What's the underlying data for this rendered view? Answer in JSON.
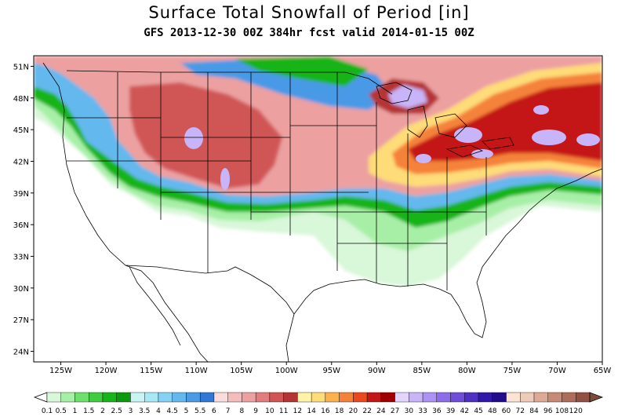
{
  "title": "Surface Total Snowfall of Period [in]",
  "subtitle": "GFS 2013-12-30 00Z 384hr fcst valid 2014-01-15 00Z",
  "lat_labels": [
    "51N",
    "48N",
    "45N",
    "42N",
    "39N",
    "36N",
    "33N",
    "30N",
    "27N",
    "24N"
  ],
  "lat_values": [
    51,
    48,
    45,
    42,
    39,
    36,
    33,
    30,
    27,
    24
  ],
  "lon_labels": [
    "125W",
    "120W",
    "115W",
    "110W",
    "105W",
    "100W",
    "95W",
    "90W",
    "85W",
    "80W",
    "75W",
    "70W",
    "65W"
  ],
  "lon_values": [
    -125,
    -120,
    -115,
    -110,
    -105,
    -100,
    -95,
    -90,
    -85,
    -80,
    -75,
    -70,
    -65
  ],
  "extent": {
    "lon_min": -128,
    "lon_max": -65,
    "lat_min": 23,
    "lat_max": 52
  },
  "legend": {
    "labels": [
      "0.1",
      "0.5",
      "1",
      "1.5",
      "2",
      "2.5",
      "3",
      "3.5",
      "4",
      "4.5",
      "5",
      "5.5",
      "6",
      "7",
      "8",
      "9",
      "10",
      "11",
      "12",
      "14",
      "16",
      "18",
      "20",
      "22",
      "24",
      "27",
      "30",
      "33",
      "36",
      "39",
      "42",
      "45",
      "48",
      "60",
      "72",
      "84",
      "96",
      "108",
      "120"
    ],
    "colors": [
      "#d9f7d9",
      "#a7efa7",
      "#6de06d",
      "#3fcc3f",
      "#19b419",
      "#0d990d",
      "#c8f4f4",
      "#a8e8f4",
      "#86d2f4",
      "#64b8ee",
      "#4a9ae6",
      "#2f78d6",
      "#fadcdc",
      "#f4bcbc",
      "#eca0a0",
      "#e27d7d",
      "#d05656",
      "#b53434",
      "#fff3a8",
      "#fedc78",
      "#fbb24c",
      "#f5823a",
      "#e84a1e",
      "#c41616",
      "#a00000",
      "#e2d4fc",
      "#c8b4f8",
      "#ac92f2",
      "#8e6ee8",
      "#6e4ed8",
      "#4e30c2",
      "#3218a8",
      "#220c8c",
      "#fbe4d6",
      "#eecab8",
      "#ddaa96",
      "#c68a76",
      "#ae6c5a",
      "#925040"
    ]
  },
  "icons": {
    "map": "snowfall-map",
    "legend_arrow_left": "arrow-left-icon",
    "legend_arrow_right": "arrow-right-icon"
  }
}
